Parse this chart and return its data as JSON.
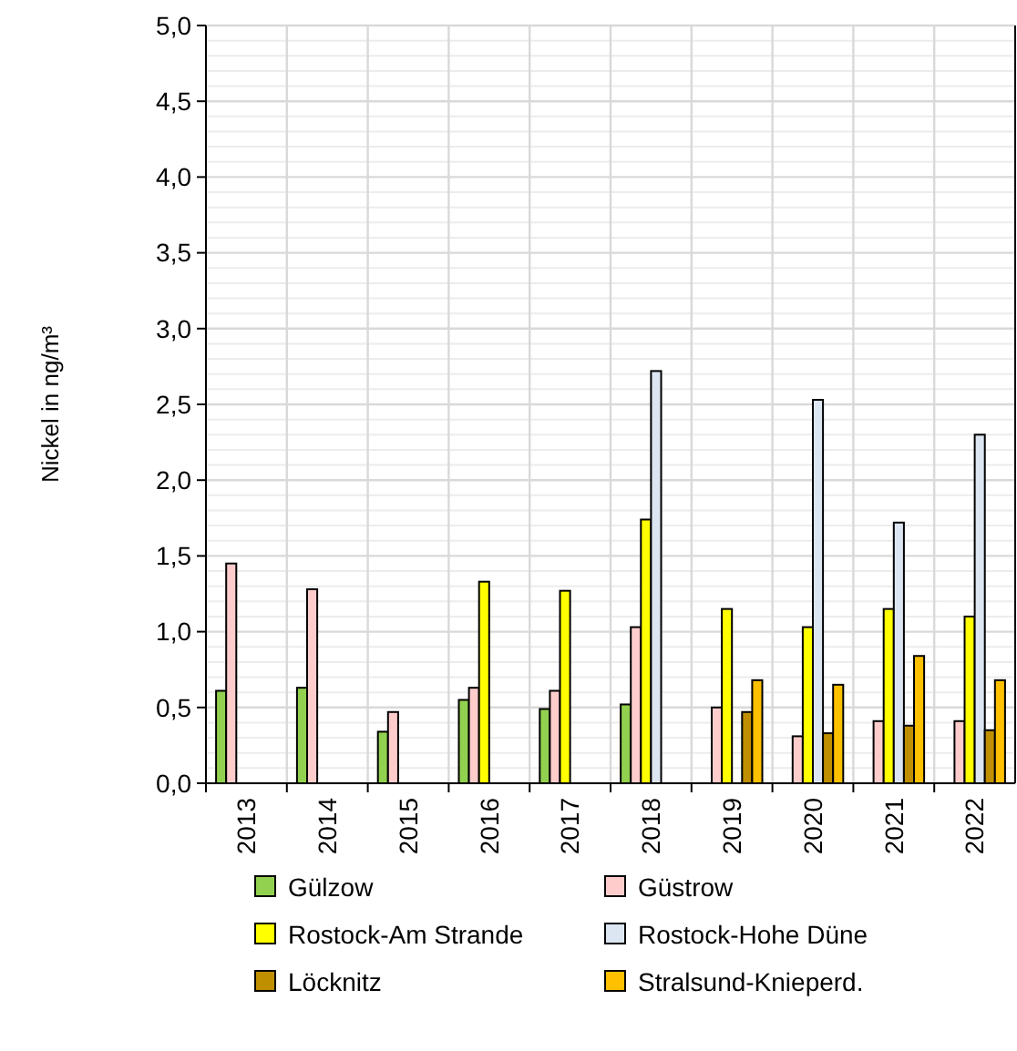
{
  "chart_data": {
    "type": "bar",
    "ylabel": "Nickel in ng/m³",
    "categories": [
      "2013",
      "2014",
      "2015",
      "2016",
      "2017",
      "2018",
      "2019",
      "2020",
      "2021",
      "2022"
    ],
    "series": [
      {
        "name": "Gülzow",
        "color": "#92d050",
        "values": [
          0.61,
          0.63,
          0.34,
          0.55,
          0.49,
          0.52,
          null,
          null,
          null,
          null
        ]
      },
      {
        "name": "Güstrow",
        "color": "#ffcccc",
        "values": [
          1.45,
          1.28,
          0.47,
          0.63,
          0.61,
          1.03,
          0.5,
          0.31,
          0.41,
          0.41
        ]
      },
      {
        "name": "Rostock-Am Strande",
        "color": "#ffff00",
        "values": [
          null,
          null,
          null,
          1.33,
          1.27,
          1.74,
          1.15,
          1.03,
          1.15,
          1.1
        ]
      },
      {
        "name": "Rostock-Hohe Düne",
        "color": "#dce6f2",
        "values": [
          null,
          null,
          null,
          null,
          null,
          2.72,
          null,
          2.53,
          1.72,
          2.3
        ]
      },
      {
        "name": "Löcknitz",
        "color": "#bf8f00",
        "values": [
          null,
          null,
          null,
          null,
          null,
          null,
          0.47,
          0.33,
          0.38,
          0.35
        ]
      },
      {
        "name": "Stralsund-Knieperd.",
        "color": "#ffc000",
        "values": [
          null,
          null,
          null,
          null,
          null,
          null,
          0.68,
          0.65,
          0.84,
          0.68
        ]
      }
    ],
    "ylim": [
      0,
      5
    ],
    "yticks": [
      {
        "value": 0,
        "label": "0,0"
      },
      {
        "value": 0.5,
        "label": "0,5"
      },
      {
        "value": 1,
        "label": "1,0"
      },
      {
        "value": 1.5,
        "label": "1,5"
      },
      {
        "value": 2,
        "label": "2,0"
      },
      {
        "value": 2.5,
        "label": "2,5"
      },
      {
        "value": 3,
        "label": "3,0"
      },
      {
        "value": 3.5,
        "label": "3,5"
      },
      {
        "value": 4,
        "label": "4,0"
      },
      {
        "value": 4.5,
        "label": "4,5"
      },
      {
        "value": 5,
        "label": "5,0"
      }
    ],
    "grid": true,
    "legend": "bottom"
  }
}
